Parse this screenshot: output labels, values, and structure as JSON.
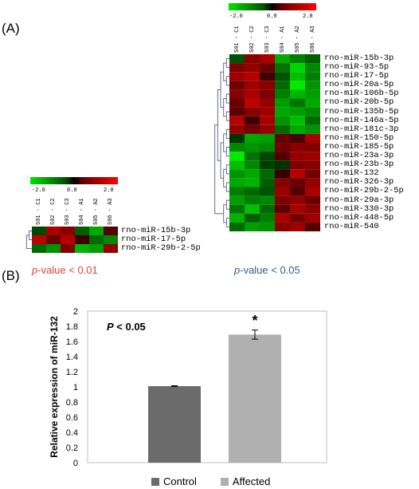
{
  "labels": {
    "panel_a": "(A)",
    "panel_b": "(B)"
  },
  "heatmap_small": {
    "scale_min": "-2.0",
    "scale_mid": "0.0",
    "scale_max": "2.0",
    "samples": [
      "S01 - C1",
      "S02 - C2",
      "S03 - C3",
      "S04 - A1",
      "S05 - A2",
      "S06 - A3"
    ],
    "genes": [
      "rno-miR-15b-3p",
      "rno-miR-17-5p",
      "rno-miR-29b-2-5p"
    ],
    "values": [
      [
        -0.3,
        1.2,
        0.9,
        -0.5,
        -1.2,
        0.4
      ],
      [
        1.4,
        0.6,
        1.3,
        0.2,
        -0.6,
        -0.9
      ],
      [
        -0.6,
        -1.0,
        0.8,
        -1.3,
        -1.1,
        1.0
      ]
    ],
    "pvalue_prefix": "p",
    "pvalue_text": "-value  < 0.01",
    "pvalue_color": "#e8413a"
  },
  "heatmap_large": {
    "scale_min": "-2.0",
    "scale_mid": "0.0",
    "scale_max": "2.0",
    "samples": [
      "S01 - C1",
      "S02 - C2",
      "S03 - C3",
      "S04 - A1",
      "S05 - A2",
      "S06 - A3"
    ],
    "genes": [
      "rno-miR-15b-3p",
      "rno-miR-93-5p",
      "rno-miR-17-5p",
      "rno-miR-20a-5p",
      "rno-miR-106b-5p",
      "rno-miR-20b-5p",
      "rno-miR-135b-5p",
      "rno-miR-146a-5p",
      "rno-miR-181c-3p",
      "rno-miR-150-5p",
      "rno-miR-185-5p",
      "rno-miR-23a-3p",
      "rno-miR-23b-3p",
      "rno-miR-132",
      "rno-miR-326-3p",
      "rno-miR-29b-2-5p",
      "rno-miR-29a-3p",
      "rno-miR-330-3p",
      "rno-miR-448-5p",
      "rno-miR-540"
    ],
    "values": [
      [
        -0.4,
        0.9,
        1.2,
        -1.2,
        -0.8,
        -0.5
      ],
      [
        0.8,
        1.0,
        0.6,
        -0.7,
        -1.6,
        -0.9
      ],
      [
        1.1,
        1.3,
        0.2,
        -0.4,
        -1.4,
        -0.8
      ],
      [
        0.7,
        1.1,
        0.9,
        -0.6,
        -1.8,
        -1.0
      ],
      [
        0.9,
        1.2,
        0.8,
        -0.8,
        -1.3,
        -1.1
      ],
      [
        0.6,
        1.4,
        1.0,
        -1.1,
        -0.7,
        -1.2
      ],
      [
        0.5,
        0.9,
        1.1,
        -1.2,
        -1.1,
        -0.9
      ],
      [
        1.3,
        0.2,
        1.2,
        -1.0,
        -1.4,
        -0.6
      ],
      [
        1.0,
        0.7,
        1.0,
        -0.6,
        -1.2,
        -1.0
      ],
      [
        -0.1,
        -1.2,
        -1.1,
        0.6,
        0.3,
        1.2
      ],
      [
        -0.9,
        -1.0,
        -0.9,
        0.7,
        0.9,
        0.8
      ],
      [
        -1.8,
        -0.7,
        -0.3,
        0.4,
        1.0,
        1.1
      ],
      [
        -1.4,
        -0.9,
        -0.2,
        -0.1,
        0.8,
        0.9
      ],
      [
        -1.0,
        -1.2,
        -0.6,
        0.1,
        1.3,
        0.7
      ],
      [
        -1.2,
        -1.3,
        -0.5,
        0.9,
        0.6,
        1.0
      ],
      [
        -0.8,
        -0.6,
        -0.4,
        1.1,
        0.4,
        1.2
      ],
      [
        -1.1,
        -0.8,
        -0.9,
        0.8,
        1.0,
        0.6
      ],
      [
        -0.7,
        -1.4,
        -0.6,
        0.5,
        1.2,
        0.9
      ],
      [
        -1.3,
        -0.5,
        -0.8,
        1.2,
        0.7,
        1.1
      ],
      [
        -0.6,
        -1.1,
        -1.0,
        0.9,
        1.1,
        0.4
      ]
    ],
    "pvalue_prefix": "p",
    "pvalue_text": "-value  < 0.05",
    "pvalue_color": "#3a5a8c"
  },
  "chart_data": {
    "type": "bar",
    "categories": [
      "Control",
      "Affected"
    ],
    "values": [
      1.01,
      1.69
    ],
    "errors": [
      0.005,
      0.06
    ],
    "colors": [
      "#6b6b6b",
      "#b0b0b0"
    ],
    "ylabel": "Relative expression of miR-132",
    "ylim": [
      0,
      2
    ],
    "yticks": [
      "0",
      "0.2",
      "0.4",
      "0.6",
      "0.8",
      "1",
      "1.2",
      "1.4",
      "1.6",
      "1.8",
      "2"
    ],
    "annotation": "P < 0.05",
    "significance_marker": "*",
    "legend": [
      "Control",
      "Affected"
    ],
    "legend_position": "bottom",
    "grid": false
  }
}
